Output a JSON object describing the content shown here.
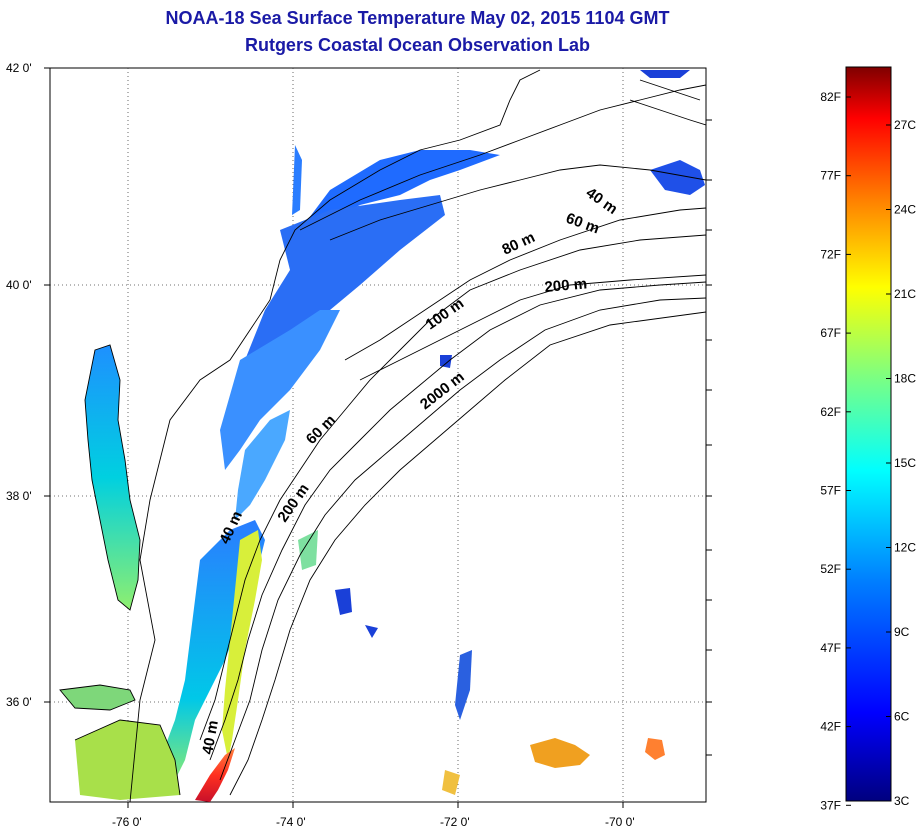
{
  "title": "NOAA-18 Sea Surface Temperature May 02, 2015 1104 GMT",
  "subtitle": "Rutgers Coastal Ocean Observation Lab",
  "lat_ticks": [
    "42 0'",
    "40 0'",
    "38 0'",
    "36 0'"
  ],
  "lon_ticks": [
    "-76 0'",
    "-74 0'",
    "-72 0'",
    "-70 0'"
  ],
  "depth_contours": [
    "40 m",
    "60 m",
    "80 m",
    "200 m",
    "100 m",
    "2000 m",
    "60 m",
    "200 m",
    "40 m",
    "40 m"
  ],
  "colorbar": {
    "fahrenheit_labels": [
      "82F",
      "77F",
      "72F",
      "67F",
      "62F",
      "57F",
      "52F",
      "47F",
      "42F",
      "37F"
    ],
    "celsius_labels": [
      "27C",
      "24C",
      "21C",
      "18C",
      "15C",
      "12C",
      "9C",
      "6C",
      "3C"
    ],
    "colors": [
      "#00007f",
      "#0000ff",
      "#007fff",
      "#00ffff",
      "#7fff7f",
      "#ffff00",
      "#ff7f00",
      "#ff0000",
      "#7f0000"
    ]
  }
}
